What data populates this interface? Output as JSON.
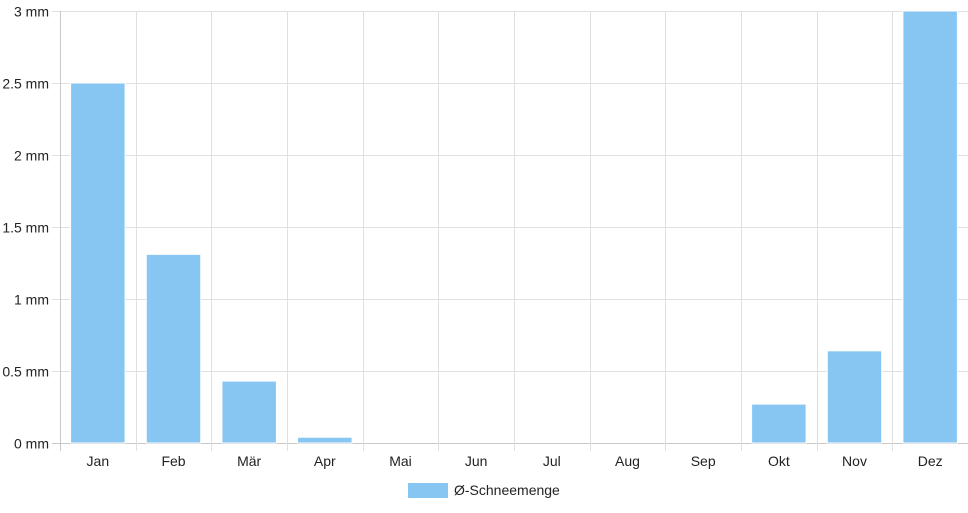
{
  "chart_data": {
    "type": "bar",
    "title": "",
    "xlabel": "",
    "ylabel": "",
    "categories": [
      "Jan",
      "Feb",
      "Mär",
      "Apr",
      "Mai",
      "Jun",
      "Jul",
      "Aug",
      "Sep",
      "Okt",
      "Nov",
      "Dez"
    ],
    "series": [
      {
        "name": "Ø-Schneemenge",
        "values": [
          2.5,
          1.31,
          0.43,
          0.04,
          0,
          0,
          0,
          0,
          0,
          0.27,
          0.64,
          3.0
        ],
        "color": "#87c6f2"
      }
    ],
    "ylim": [
      0,
      3
    ],
    "y_ticks": [
      0,
      0.5,
      1,
      1.5,
      2,
      2.5,
      3
    ],
    "y_tick_labels": [
      "0 mm",
      "0.5 mm",
      "1 mm",
      "1.5 mm",
      "2 mm",
      "2.5 mm",
      "3 mm"
    ],
    "grid": true,
    "legend_position": "bottom"
  }
}
